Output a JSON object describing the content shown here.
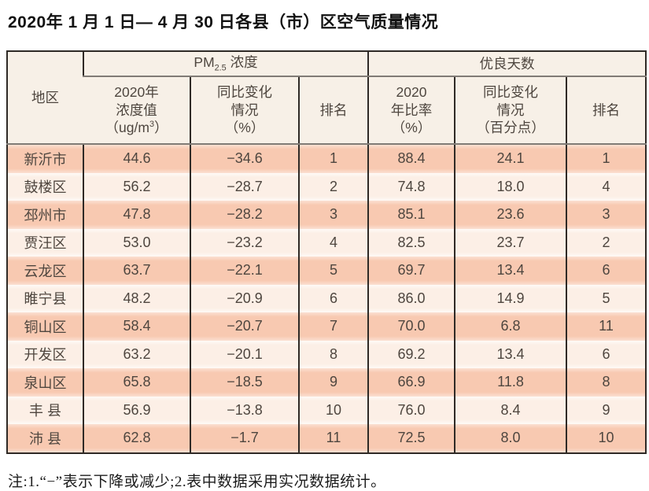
{
  "page": {
    "title": "2020年 1 月 1 日— 4 月 30 日各县（市）区空气质量情况",
    "footnote": "注:1.“−”表示下降或减少;2.表中数据采用实况数据统计。"
  },
  "table": {
    "header": {
      "region": "地区",
      "pm_group": {
        "a": "PM",
        "sub": "2.5",
        "b": " 浓度"
      },
      "good_group": "优良天数",
      "pm_value": {
        "l1": "2020年",
        "l2": "浓度值",
        "l3a": "（ug/m",
        "l3sup": "3",
        "l3b": "）"
      },
      "pm_change": {
        "l1": "同比变化",
        "l2": "情况",
        "l3": "（%）"
      },
      "pm_rank": "排名",
      "good_rate": {
        "l1": "2020",
        "l2": "年比率",
        "l3": "（%）"
      },
      "good_change": {
        "l1": "同比变化",
        "l2": "情况",
        "l3": "（百分点）"
      },
      "good_rank": "排名"
    },
    "rows": [
      {
        "region": "新沂市",
        "pm_value": "44.6",
        "pm_change": "−34.6",
        "pm_rank": "1",
        "good_rate": "88.4",
        "good_change": "24.1",
        "good_rank": "1"
      },
      {
        "region": "鼓楼区",
        "pm_value": "56.2",
        "pm_change": "−28.7",
        "pm_rank": "2",
        "good_rate": "74.8",
        "good_change": "18.0",
        "good_rank": "4"
      },
      {
        "region": "邳州市",
        "pm_value": "47.8",
        "pm_change": "−28.2",
        "pm_rank": "3",
        "good_rate": "85.1",
        "good_change": "23.6",
        "good_rank": "3"
      },
      {
        "region": "贾汪区",
        "pm_value": "53.0",
        "pm_change": "−23.2",
        "pm_rank": "4",
        "good_rate": "82.5",
        "good_change": "23.7",
        "good_rank": "2"
      },
      {
        "region": "云龙区",
        "pm_value": "63.7",
        "pm_change": "−22.1",
        "pm_rank": "5",
        "good_rate": "69.7",
        "good_change": "13.4",
        "good_rank": "6"
      },
      {
        "region": "睢宁县",
        "pm_value": "48.2",
        "pm_change": "−20.9",
        "pm_rank": "6",
        "good_rate": "86.0",
        "good_change": "14.9",
        "good_rank": "5"
      },
      {
        "region": "铜山区",
        "pm_value": "58.4",
        "pm_change": "−20.7",
        "pm_rank": "7",
        "good_rate": "70.0",
        "good_change": "6.8",
        "good_rank": "11"
      },
      {
        "region": "开发区",
        "pm_value": "63.2",
        "pm_change": "−20.1",
        "pm_rank": "8",
        "good_rate": "69.2",
        "good_change": "13.4",
        "good_rank": "6"
      },
      {
        "region": "泉山区",
        "pm_value": "65.8",
        "pm_change": "−18.5",
        "pm_rank": "9",
        "good_rate": "66.9",
        "good_change": "11.8",
        "good_rank": "8"
      },
      {
        "region": "丰 县",
        "pm_value": "56.9",
        "pm_change": "−13.8",
        "pm_rank": "10",
        "good_rate": "76.0",
        "good_change": "8.4",
        "good_rank": "9"
      },
      {
        "region": "沛 县",
        "pm_value": "62.8",
        "pm_change": "−1.7",
        "pm_rank": "11",
        "good_rate": "72.5",
        "good_change": "8.0",
        "good_rank": "10"
      }
    ]
  }
}
